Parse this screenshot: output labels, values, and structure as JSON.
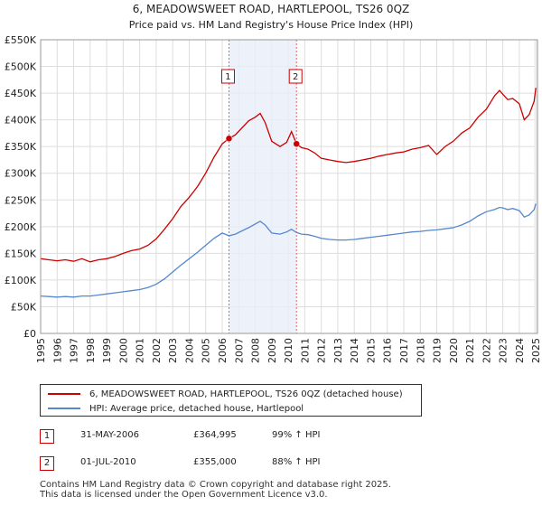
{
  "chart_data": {
    "type": "line",
    "title": "6, MEADOWSWEET ROAD, HARTLEPOOL, TS26 0QZ",
    "subtitle": "Price paid vs. HM Land Registry's House Price Index (HPI)",
    "xlabel": "",
    "ylabel": "",
    "xlim": [
      1995,
      2025.1
    ],
    "ylim": [
      0,
      550000
    ],
    "x_ticks": [
      "1995",
      "1996",
      "1997",
      "1998",
      "1999",
      "2000",
      "2001",
      "2002",
      "2003",
      "2004",
      "2005",
      "2006",
      "2007",
      "2008",
      "2009",
      "2010",
      "2011",
      "2012",
      "2013",
      "2014",
      "2015",
      "2016",
      "2017",
      "2018",
      "2019",
      "2020",
      "2021",
      "2022",
      "2023",
      "2024",
      "2025"
    ],
    "y_ticks": [
      {
        "value": 0,
        "label": "£0"
      },
      {
        "value": 50000,
        "label": "£50K"
      },
      {
        "value": 100000,
        "label": "£100K"
      },
      {
        "value": 150000,
        "label": "£150K"
      },
      {
        "value": 200000,
        "label": "£200K"
      },
      {
        "value": 250000,
        "label": "£250K"
      },
      {
        "value": 300000,
        "label": "£300K"
      },
      {
        "value": 350000,
        "label": "£350K"
      },
      {
        "value": 400000,
        "label": "£400K"
      },
      {
        "value": 450000,
        "label": "£450K"
      },
      {
        "value": 500000,
        "label": "£500K"
      },
      {
        "value": 550000,
        "label": "£550K"
      }
    ],
    "grid": true,
    "shaded_region": [
      2006.41,
      2010.5
    ],
    "series": [
      {
        "name": "6, MEADOWSWEET ROAD, HARTLEPOOL, TS26 0QZ (detached house)",
        "color": "#cc0000",
        "x": [
          1995.0,
          1995.5,
          1996.0,
          1996.5,
          1997.0,
          1997.5,
          1998.0,
          1998.5,
          1999.0,
          1999.5,
          2000.0,
          2000.5,
          2001.0,
          2001.5,
          2002.0,
          2002.5,
          2003.0,
          2003.5,
          2004.0,
          2004.5,
          2005.0,
          2005.5,
          2006.0,
          2006.41,
          2006.8,
          2007.2,
          2007.6,
          2008.0,
          2008.3,
          2008.6,
          2009.0,
          2009.5,
          2009.9,
          2010.2,
          2010.5,
          2010.8,
          2011.2,
          2011.6,
          2012.0,
          2012.5,
          2013.0,
          2013.5,
          2014.0,
          2014.5,
          2015.0,
          2015.5,
          2016.0,
          2016.5,
          2017.0,
          2017.5,
          2018.0,
          2018.5,
          2019.0,
          2019.5,
          2020.0,
          2020.5,
          2021.0,
          2021.5,
          2022.0,
          2022.5,
          2022.8,
          2023.0,
          2023.3,
          2023.6,
          2024.0,
          2024.3,
          2024.6,
          2024.9,
          2025.0
        ],
        "values": [
          140000,
          138000,
          136000,
          138000,
          135000,
          140000,
          134000,
          138000,
          140000,
          144000,
          150000,
          155000,
          158000,
          165000,
          177000,
          195000,
          215000,
          238000,
          255000,
          275000,
          300000,
          330000,
          355000,
          364995,
          372000,
          385000,
          398000,
          405000,
          412000,
          395000,
          360000,
          350000,
          358000,
          378000,
          355000,
          348000,
          345000,
          338000,
          328000,
          325000,
          322000,
          320000,
          322000,
          325000,
          328000,
          332000,
          335000,
          338000,
          340000,
          345000,
          348000,
          352000,
          335000,
          350000,
          360000,
          375000,
          385000,
          405000,
          420000,
          445000,
          455000,
          448000,
          438000,
          440000,
          430000,
          400000,
          410000,
          435000,
          460000
        ]
      },
      {
        "name": "HPI: Average price, detached house, Hartlepool",
        "color": "#5588cc",
        "x": [
          1995.0,
          1995.5,
          1996.0,
          1996.5,
          1997.0,
          1997.5,
          1998.0,
          1998.5,
          1999.0,
          1999.5,
          2000.0,
          2000.5,
          2001.0,
          2001.5,
          2002.0,
          2002.5,
          2003.0,
          2003.5,
          2004.0,
          2004.5,
          2005.0,
          2005.5,
          2006.0,
          2006.41,
          2006.8,
          2007.2,
          2007.6,
          2008.0,
          2008.3,
          2008.6,
          2009.0,
          2009.5,
          2009.9,
          2010.2,
          2010.5,
          2010.8,
          2011.2,
          2011.6,
          2012.0,
          2012.5,
          2013.0,
          2013.5,
          2014.0,
          2014.5,
          2015.0,
          2015.5,
          2016.0,
          2016.5,
          2017.0,
          2017.5,
          2018.0,
          2018.5,
          2019.0,
          2019.5,
          2020.0,
          2020.5,
          2021.0,
          2021.5,
          2022.0,
          2022.5,
          2022.8,
          2023.0,
          2023.3,
          2023.6,
          2024.0,
          2024.3,
          2024.6,
          2024.9,
          2025.0
        ],
        "values": [
          70000,
          69000,
          68000,
          69000,
          68000,
          70000,
          70000,
          72000,
          74000,
          76000,
          78000,
          80000,
          82000,
          86000,
          92000,
          102000,
          115000,
          128000,
          140000,
          152000,
          165000,
          178000,
          188000,
          183000,
          186000,
          192000,
          198000,
          205000,
          210000,
          203000,
          188000,
          186000,
          190000,
          195000,
          189000,
          186000,
          185000,
          182000,
          178000,
          176000,
          175000,
          175000,
          176000,
          178000,
          180000,
          182000,
          184000,
          186000,
          188000,
          190000,
          191000,
          193000,
          194000,
          196000,
          198000,
          203000,
          210000,
          220000,
          228000,
          232000,
          236000,
          235000,
          232000,
          234000,
          230000,
          218000,
          222000,
          232000,
          243000
        ]
      }
    ],
    "sales": [
      {
        "label": "1",
        "x": 2006.41,
        "value": 364995,
        "date": "31-MAY-2006",
        "price": "£364,995",
        "hpi_change": "99% ↑ HPI"
      },
      {
        "label": "2",
        "x": 2010.5,
        "value": 355000,
        "date": "01-JUL-2010",
        "price": "£355,000",
        "hpi_change": "88% ↑ HPI"
      }
    ]
  },
  "footer": {
    "line1": "Contains HM Land Registry data © Crown copyright and database right 2025.",
    "line2": "This data is licensed under the Open Government Licence v3.0."
  }
}
